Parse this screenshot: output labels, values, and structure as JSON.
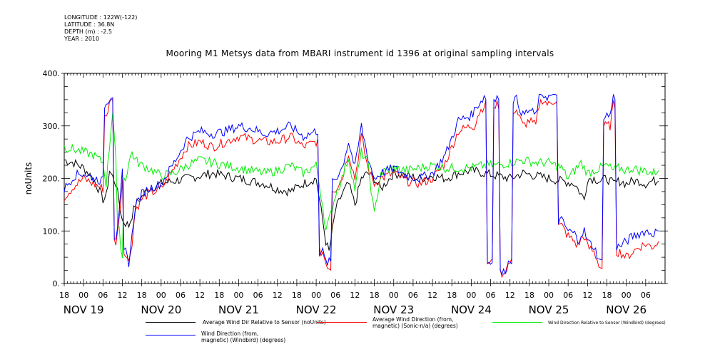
{
  "metadata": {
    "longitude": "LONGITUDE : 122W(-122)",
    "latitude": "LATITUDE : 36.8N",
    "depth": "DEPTH (m) : -2.5",
    "year": "YEAR : 2010"
  },
  "colors": {
    "black": "#000000",
    "red": "#ff0000",
    "green": "#00ee00",
    "blue": "#0000ff"
  },
  "chart_data": {
    "type": "line",
    "title": "Mooring M1 Metsys data from MBARI instrument id 1396 at original sampling intervals",
    "ylabel": "noUnits",
    "xlabel": "",
    "ylim": [
      0,
      400
    ],
    "xlim": [
      -6,
      180
    ],
    "grid": false,
    "y_ticks": [
      0,
      100,
      200,
      300,
      400
    ],
    "y_tick_labels": [
      "0.",
      "100.",
      "200.",
      "300.",
      "400."
    ],
    "x_hour_ticks": [
      -6,
      0,
      6,
      12,
      18,
      24,
      30,
      36,
      42,
      48,
      54,
      60,
      66,
      72,
      78,
      84,
      90,
      96,
      102,
      108,
      114,
      120,
      126,
      132,
      138,
      144,
      150,
      156,
      162,
      168,
      174
    ],
    "x_hour_labels": [
      "18",
      "00",
      "06",
      "12",
      "18",
      "00",
      "06",
      "12",
      "18",
      "00",
      "06",
      "12",
      "18",
      "00",
      "06",
      "12",
      "18",
      "00",
      "06",
      "12",
      "18",
      "00",
      "06",
      "12",
      "18",
      "00",
      "06",
      "12",
      "18",
      "00",
      "06"
    ],
    "date_labels": [
      {
        "hour": 0,
        "label": "NOV 19"
      },
      {
        "hour": 24,
        "label": "NOV 20"
      },
      {
        "hour": 48,
        "label": "NOV 21"
      },
      {
        "hour": 72,
        "label": "NOV 22"
      },
      {
        "hour": 96,
        "label": "NOV 23"
      },
      {
        "hour": 120,
        "label": "NOV 24"
      },
      {
        "hour": 144,
        "label": "NOV 25"
      },
      {
        "hour": 168,
        "label": "NOV 26"
      }
    ],
    "series": [
      {
        "name": "Average Wind Dir Relative to Sensor (noUnits)",
        "color": "#000000",
        "x": [
          -6,
          -3,
          0,
          3,
          5,
          6,
          7,
          8,
          10,
          12,
          14,
          16,
          20,
          24,
          28,
          32,
          36,
          40,
          44,
          48,
          52,
          56,
          60,
          64,
          68,
          72,
          74,
          75,
          76,
          78,
          80,
          82,
          84,
          86,
          88,
          90,
          92,
          96,
          100,
          104,
          108,
          112,
          116,
          120,
          124,
          128,
          132,
          136,
          140,
          144,
          148,
          152,
          154,
          155,
          156,
          158,
          160,
          162,
          164,
          166,
          168,
          170,
          172,
          174,
          176,
          178
        ],
        "y": [
          235,
          230,
          220,
          200,
          175,
          160,
          165,
          215,
          190,
          120,
          110,
          150,
          180,
          190,
          195,
          200,
          205,
          210,
          205,
          200,
          195,
          190,
          180,
          175,
          190,
          200,
          120,
          80,
          60,
          140,
          170,
          190,
          150,
          200,
          210,
          200,
          180,
          210,
          205,
          200,
          205,
          200,
          210,
          215,
          210,
          205,
          200,
          210,
          205,
          200,
          195,
          190,
          170,
          160,
          200,
          200,
          195,
          200,
          190,
          195,
          190,
          195,
          195,
          190,
          195,
          195
        ]
      },
      {
        "name": "Average Wind Direction (from, magnetic) (Sonic-n/a) (degrees)",
        "color": "#ff0000",
        "x": [
          -6,
          -3,
          0,
          3,
          6,
          7,
          8,
          9,
          10,
          11,
          12,
          13,
          14,
          15,
          16,
          18,
          20,
          24,
          28,
          32,
          36,
          40,
          44,
          48,
          52,
          56,
          60,
          64,
          68,
          72,
          74,
          75,
          76,
          78,
          80,
          82,
          84,
          86,
          88,
          90,
          92,
          96,
          100,
          104,
          108,
          112,
          116,
          120,
          121,
          122,
          124,
          126,
          128,
          130,
          132,
          134,
          136,
          138,
          140,
          141,
          142,
          144,
          146,
          148,
          150,
          152,
          153,
          154,
          155,
          156,
          158,
          160,
          162,
          163,
          164,
          166,
          168,
          170,
          172,
          174,
          176,
          178
        ],
        "y": [
          165,
          185,
          200,
          190,
          180,
          320,
          340,
          355,
          80,
          120,
          200,
          60,
          40,
          80,
          140,
          160,
          170,
          180,
          220,
          260,
          270,
          260,
          270,
          280,
          275,
          270,
          270,
          280,
          260,
          270,
          60,
          40,
          30,
          180,
          200,
          250,
          200,
          280,
          220,
          190,
          200,
          210,
          195,
          190,
          200,
          230,
          290,
          300,
          300,
          320,
          340,
          40,
          340,
          20,
          40,
          330,
          300,
          310,
          300,
          340,
          350,
          340,
          350,
          110,
          90,
          80,
          70,
          85,
          90,
          70,
          60,
          30,
          300,
          300,
          340,
          60,
          50,
          60,
          70,
          75,
          70,
          80
        ]
      },
      {
        "name": "Wind Direction Relative to Sensor (Windbird) (degrees)",
        "color": "#00ee00",
        "x": [
          -6,
          -3,
          0,
          3,
          6,
          7,
          8,
          9,
          10,
          11,
          12,
          13,
          14,
          15,
          16,
          18,
          20,
          24,
          28,
          32,
          36,
          40,
          44,
          48,
          52,
          56,
          60,
          64,
          68,
          72,
          74,
          75,
          76,
          78,
          80,
          82,
          84,
          86,
          88,
          90,
          92,
          96,
          100,
          104,
          108,
          112,
          116,
          120,
          124,
          128,
          132,
          136,
          140,
          144,
          148,
          150,
          152,
          154,
          156,
          158,
          160,
          162,
          164,
          166,
          168,
          170,
          172,
          174,
          176,
          178
        ],
        "y": [
          260,
          255,
          250,
          245,
          230,
          190,
          260,
          330,
          240,
          100,
          50,
          200,
          230,
          250,
          235,
          225,
          220,
          205,
          210,
          225,
          235,
          230,
          225,
          220,
          215,
          210,
          215,
          225,
          210,
          225,
          150,
          100,
          120,
          170,
          200,
          240,
          180,
          250,
          230,
          130,
          210,
          220,
          215,
          220,
          225,
          220,
          220,
          220,
          225,
          225,
          230,
          235,
          230,
          230,
          220,
          200,
          215,
          230,
          210,
          215,
          220,
          225,
          215,
          220,
          215,
          220,
          215,
          215,
          210,
          215
        ]
      },
      {
        "name": "Wind Direction (from, magnetic) (Windbird) (degrees)",
        "color": "#0000ff",
        "x": [
          -6,
          -3,
          0,
          3,
          6,
          7,
          8,
          9,
          10,
          11,
          12,
          13,
          14,
          15,
          16,
          18,
          20,
          24,
          28,
          32,
          36,
          40,
          44,
          48,
          52,
          56,
          60,
          64,
          68,
          72,
          74,
          75,
          76,
          78,
          80,
          82,
          84,
          86,
          88,
          90,
          92,
          96,
          100,
          104,
          108,
          112,
          116,
          120,
          121,
          122,
          124,
          126,
          128,
          130,
          132,
          134,
          136,
          138,
          140,
          141,
          142,
          144,
          146,
          148,
          150,
          152,
          153,
          154,
          155,
          156,
          158,
          160,
          162,
          163,
          164,
          166,
          168,
          170,
          172,
          174,
          176,
          178
        ],
        "y": [
          180,
          205,
          210,
          200,
          195,
          340,
          355,
          360,
          90,
          130,
          210,
          60,
          40,
          90,
          150,
          170,
          180,
          190,
          230,
          275,
          290,
          285,
          290,
          300,
          295,
          285,
          290,
          300,
          280,
          290,
          60,
          40,
          40,
          200,
          220,
          270,
          220,
          300,
          240,
          200,
          210,
          220,
          205,
          200,
          210,
          245,
          310,
          320,
          330,
          340,
          355,
          40,
          355,
          20,
          45,
          350,
          320,
          330,
          320,
          355,
          360,
          355,
          360,
          120,
          100,
          95,
          80,
          95,
          100,
          80,
          70,
          40,
          320,
          320,
          355,
          70,
          80,
          90,
          95,
          100,
          95,
          100
        ]
      }
    ],
    "legend": [
      {
        "label": "Average Wind Dir Relative to Sensor (noUnits)",
        "color": "#000000"
      },
      {
        "label": "Average Wind Direction (from,\nmagnetic) (Sonic-n/a) (degrees)",
        "color": "#ff0000"
      },
      {
        "label": "Wind Direction Relative to Sensor (Windbird) (degrees)",
        "color": "#00ee00"
      },
      {
        "label": "Wind Direction (from,\nmagnetic) (Windbird) (degrees)",
        "color": "#0000ff"
      }
    ]
  }
}
